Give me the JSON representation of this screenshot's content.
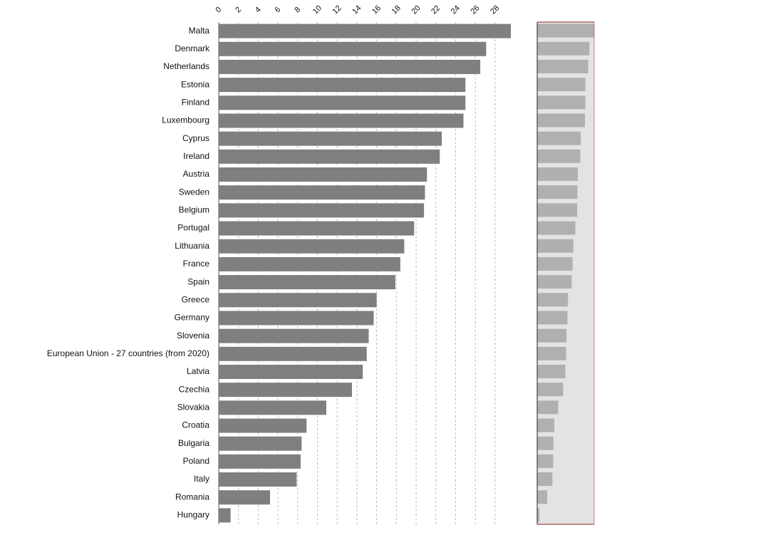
{
  "chart_data": {
    "type": "bar",
    "orientation": "horizontal",
    "categories": [
      "Malta",
      "Denmark",
      "Netherlands",
      "Estonia",
      "Finland",
      "Luxembourg",
      "Cyprus",
      "Ireland",
      "Austria",
      "Sweden",
      "Belgium",
      "Portugal",
      "Lithuania",
      "France",
      "Spain",
      "Greece",
      "Germany",
      "Slovenia",
      "European Union - 27 countries (from 2020)",
      "Latvia",
      "Czechia",
      "Slovakia",
      "Croatia",
      "Bulgaria",
      "Poland",
      "Italy",
      "Romania",
      "Hungary"
    ],
    "values": [
      29.6,
      27.1,
      26.5,
      25.0,
      25.0,
      24.8,
      22.6,
      22.4,
      21.1,
      20.9,
      20.8,
      19.8,
      18.8,
      18.4,
      17.9,
      16.0,
      15.7,
      15.2,
      15.0,
      14.6,
      13.5,
      10.9,
      8.9,
      8.4,
      8.3,
      7.9,
      5.2,
      1.2
    ],
    "color": "#7f7f7f",
    "navigator_color": "#b0b0b0",
    "xlim": [
      0,
      29.6
    ],
    "xticks": [
      0,
      2,
      4,
      6,
      8,
      10,
      12,
      14,
      16,
      18,
      20,
      22,
      24,
      26,
      28
    ],
    "grid": true,
    "navigator": true
  }
}
